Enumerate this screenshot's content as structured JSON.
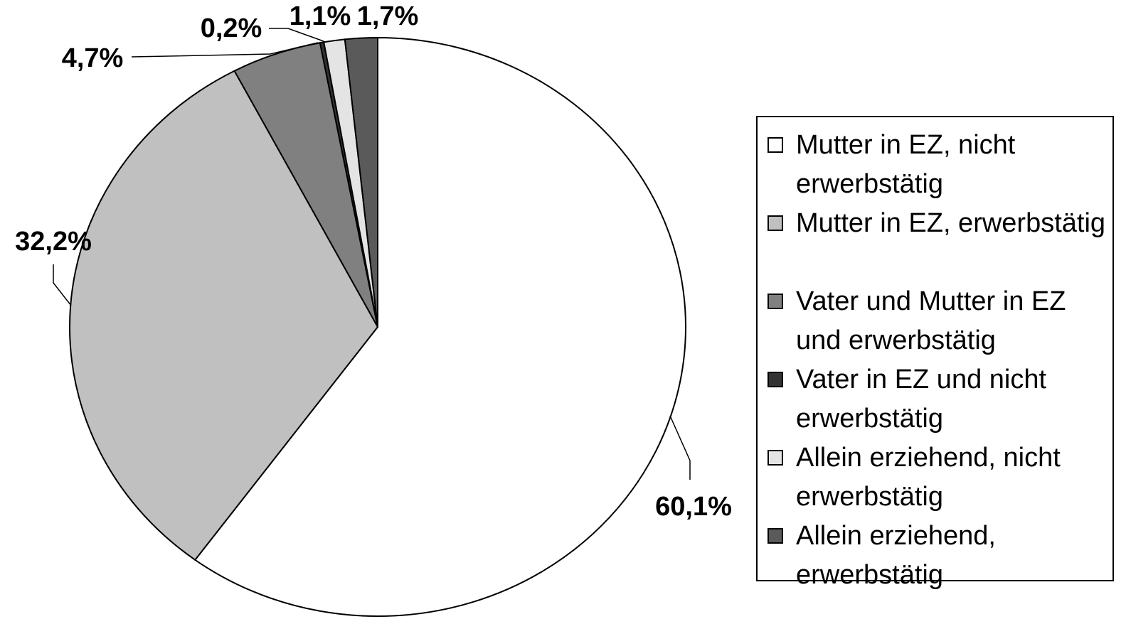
{
  "chart_data": {
    "type": "pie",
    "categories": [
      "Mutter in EZ, nicht erwerbstätig",
      "Mutter in EZ, erwerbstätig",
      "Vater und Mutter in EZ und erwerbstätig",
      "Vater in EZ und nicht erwerbstätig",
      "Allein erziehend, nicht erwerbstätig",
      "Allein erziehend, erwerbstätig"
    ],
    "values": [
      60.1,
      32.2,
      4.7,
      0.2,
      1.1,
      1.7
    ],
    "value_labels": [
      "60,1%",
      "32,2%",
      "4,7%",
      "0,2%",
      "1,1%",
      "1,7%"
    ],
    "colors": [
      "#ffffff",
      "#c0c0c0",
      "#808080",
      "#333333",
      "#e4e4e4",
      "#5a5a5a"
    ],
    "legend": "right"
  }
}
